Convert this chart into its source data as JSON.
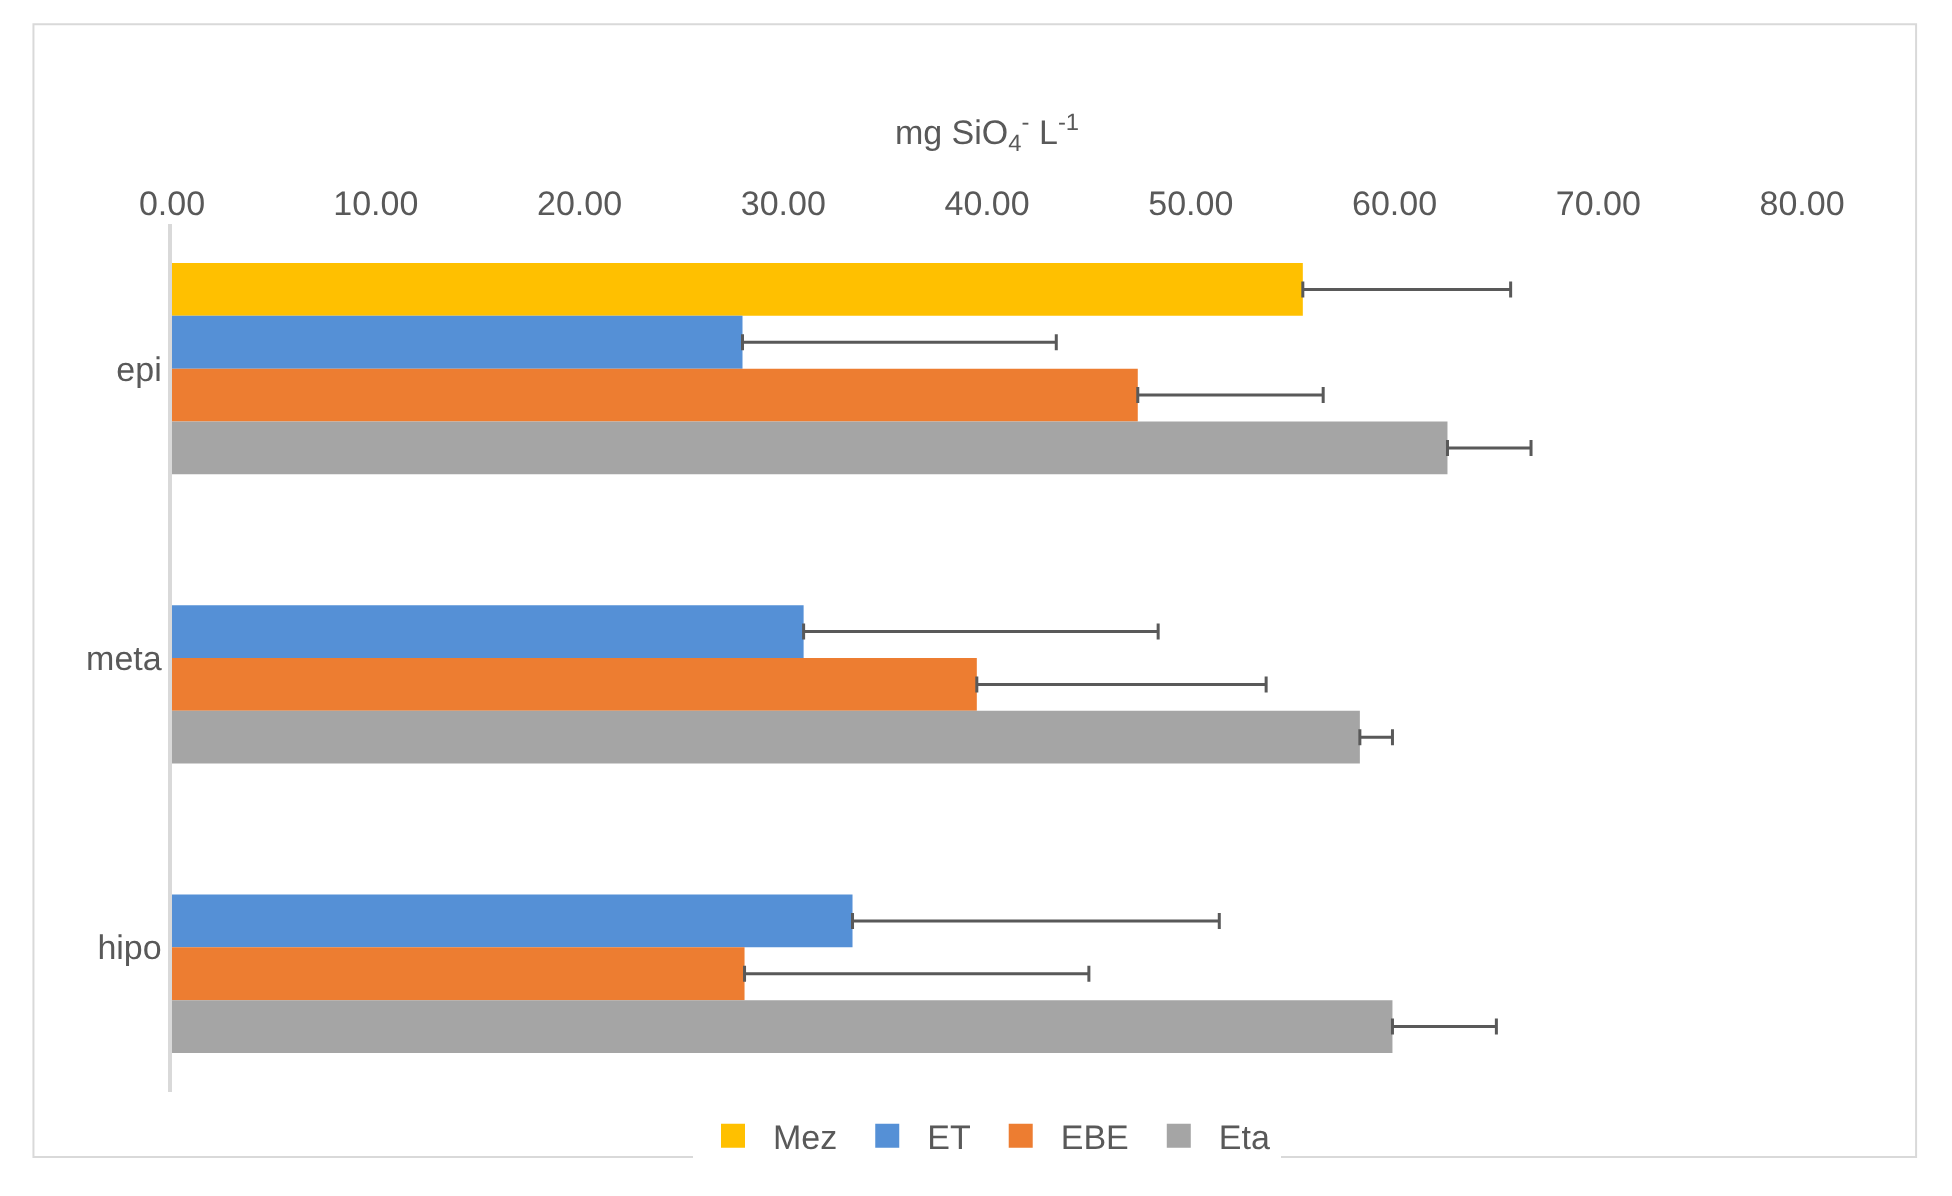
{
  "chart_data": {
    "type": "bar",
    "orientation": "horizontal",
    "xlabel": "mg SiO$_{4}$$^{-}$ L$^{-1}$",
    "categories": [
      "epi",
      "meta",
      "hipo"
    ],
    "series": [
      {
        "name": "Mez",
        "color": "#ffc000",
        "values": [
          55.5,
          null,
          null
        ],
        "errors": [
          [
            55.5,
            65.7
          ],
          null,
          null
        ]
      },
      {
        "name": "ET",
        "color": "#5590d6",
        "values": [
          28.0,
          31.0,
          33.4
        ],
        "errors": [
          [
            28.0,
            43.4
          ],
          [
            31.0,
            48.4
          ],
          [
            33.4,
            51.4
          ]
        ]
      },
      {
        "name": "EBE",
        "color": "#ed7d31",
        "values": [
          47.4,
          39.5,
          28.1
        ],
        "errors": [
          [
            47.4,
            56.5
          ],
          [
            39.5,
            53.7
          ],
          [
            28.1,
            45.0
          ]
        ]
      },
      {
        "name": "Eta",
        "color": "#a5a5a5",
        "values": [
          62.6,
          58.3,
          59.9
        ],
        "errors": [
          [
            62.6,
            66.7
          ],
          [
            58.3,
            59.9
          ],
          [
            59.9,
            65.0
          ]
        ]
      }
    ],
    "xlim": [
      0,
      80
    ],
    "xticks": [
      {
        "value": 0,
        "label": "0.00"
      },
      {
        "value": 10,
        "label": "10.00"
      },
      {
        "value": 20,
        "label": "20.00"
      },
      {
        "value": 30,
        "label": "30.00"
      },
      {
        "value": 40,
        "label": "40.00"
      },
      {
        "value": 50,
        "label": "50.00"
      },
      {
        "value": 60,
        "label": "60.00"
      },
      {
        "value": 70,
        "label": "70.00"
      },
      {
        "value": 80,
        "label": "80.00"
      }
    ],
    "grid": false,
    "legend": "bottom"
  }
}
